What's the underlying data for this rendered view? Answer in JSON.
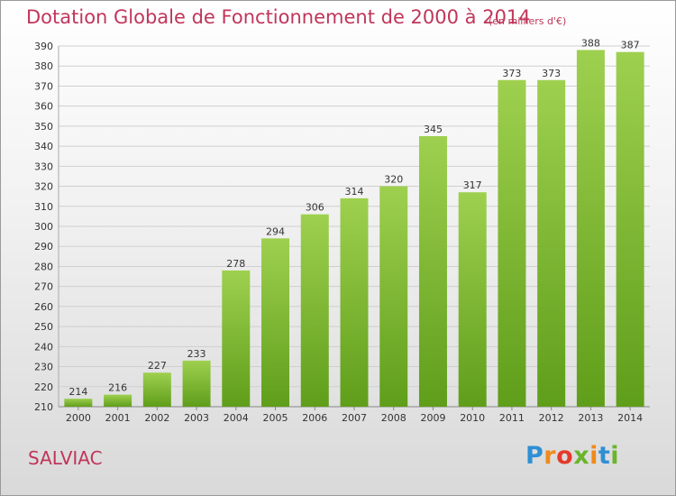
{
  "title": "Dotation Globale de Fonctionnement de 2000 à 2014",
  "subtitle": "(en milliers d'€)",
  "commune": "SALVIAC",
  "logo": {
    "text": "Proxiti",
    "colors": [
      "#2e8fd4",
      "#f08a1c",
      "#e53a2a",
      "#6ab52a",
      "#f08a1c",
      "#2e8fd4",
      "#6ab52a"
    ]
  },
  "colors": {
    "title": "#c0365a",
    "bar_top": "#9ed04f",
    "bar_bottom": "#5f9e1a",
    "grid": "#cfcfcf",
    "axis_text": "#333333"
  },
  "chart_data": {
    "type": "bar",
    "title": "Dotation Globale de Fonctionnement de 2000 à 2014",
    "unit": "(en milliers d'€)",
    "categories": [
      "2000",
      "2001",
      "2002",
      "2003",
      "2004",
      "2005",
      "2006",
      "2007",
      "2008",
      "2009",
      "2010",
      "2011",
      "2012",
      "2013",
      "2014"
    ],
    "values": [
      214,
      216,
      227,
      233,
      278,
      294,
      306,
      314,
      320,
      345,
      317,
      373,
      373,
      388,
      387
    ],
    "ylim": [
      210,
      390
    ],
    "yticks": [
      210,
      220,
      230,
      240,
      250,
      260,
      270,
      280,
      290,
      300,
      310,
      320,
      330,
      340,
      350,
      360,
      370,
      380,
      390
    ],
    "grid": true
  }
}
